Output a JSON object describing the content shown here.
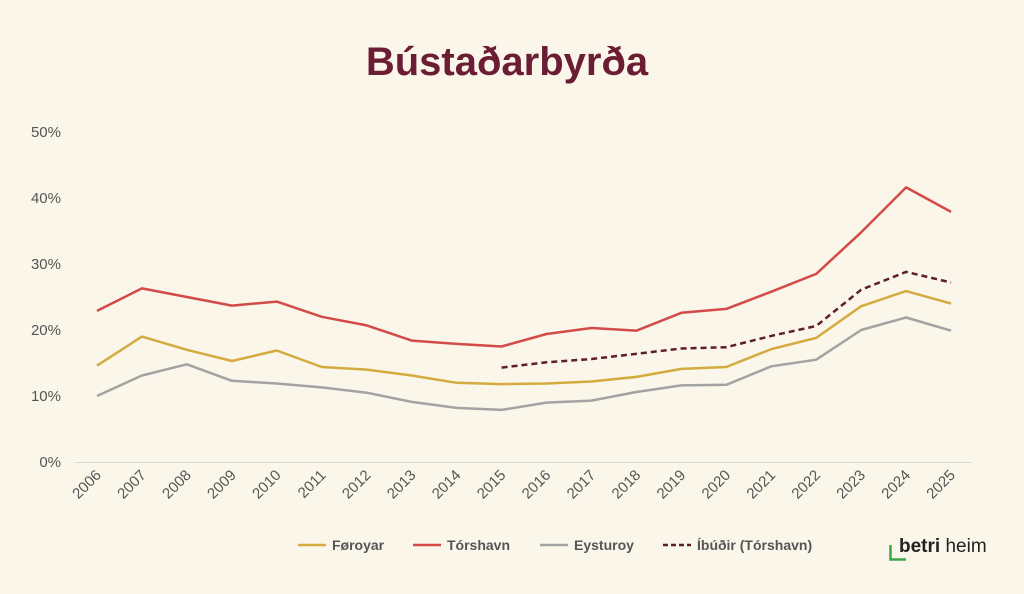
{
  "colors": {
    "background": "#fbf6ea",
    "title": "#6b1e33",
    "axis": "#d9d9d9",
    "logo_corner": "#3aa84a"
  },
  "brand": {
    "name_bold": "betri",
    "name_rest": " heim"
  },
  "chart_data": {
    "type": "line",
    "title": "Bústaðarbyrða",
    "xlabel": "",
    "ylabel": "",
    "categories": [
      "2006",
      "2007",
      "2008",
      "2009",
      "2010",
      "2011",
      "2012",
      "2013",
      "2014",
      "2015",
      "2016",
      "2017",
      "2018",
      "2019",
      "2020",
      "2021",
      "2022",
      "2023",
      "2024",
      "2025"
    ],
    "ylim": [
      0,
      50
    ],
    "yticks": [
      0,
      10,
      20,
      30,
      40,
      50
    ],
    "ytick_labels": [
      "0%",
      "10%",
      "20%",
      "30%",
      "40%",
      "50%"
    ],
    "grid": false,
    "legend_position": "bottom",
    "series": [
      {
        "name": "Føroyar",
        "color": "#d4ab3f",
        "dashed": false,
        "values": [
          14.6,
          19.0,
          17.0,
          15.3,
          16.9,
          14.4,
          14.0,
          13.1,
          12.0,
          11.8,
          11.9,
          12.2,
          12.9,
          14.1,
          14.4,
          17.1,
          18.8,
          23.6,
          25.9,
          24.0
        ]
      },
      {
        "name": "Tórshavn",
        "color": "#d24b47",
        "dashed": false,
        "values": [
          22.9,
          26.3,
          25.0,
          23.7,
          24.3,
          22.0,
          20.7,
          18.4,
          17.9,
          17.5,
          19.4,
          20.3,
          19.9,
          22.6,
          23.2,
          25.8,
          28.5,
          34.8,
          41.6,
          37.9
        ]
      },
      {
        "name": "Eysturoy",
        "color": "#a3a3a3",
        "dashed": false,
        "values": [
          10.0,
          13.1,
          14.8,
          12.3,
          11.9,
          11.3,
          10.5,
          9.1,
          8.2,
          7.9,
          9.0,
          9.3,
          10.6,
          11.6,
          11.7,
          14.5,
          15.5,
          20.0,
          21.9,
          19.9
        ]
      },
      {
        "name": "Íbúðir (Tórshavn)",
        "color": "#5e1f2c",
        "dashed": true,
        "values": [
          null,
          null,
          null,
          null,
          null,
          null,
          null,
          null,
          null,
          14.3,
          15.1,
          15.6,
          16.4,
          17.2,
          17.4,
          19.1,
          20.6,
          26.1,
          28.8,
          27.2
        ]
      }
    ]
  }
}
